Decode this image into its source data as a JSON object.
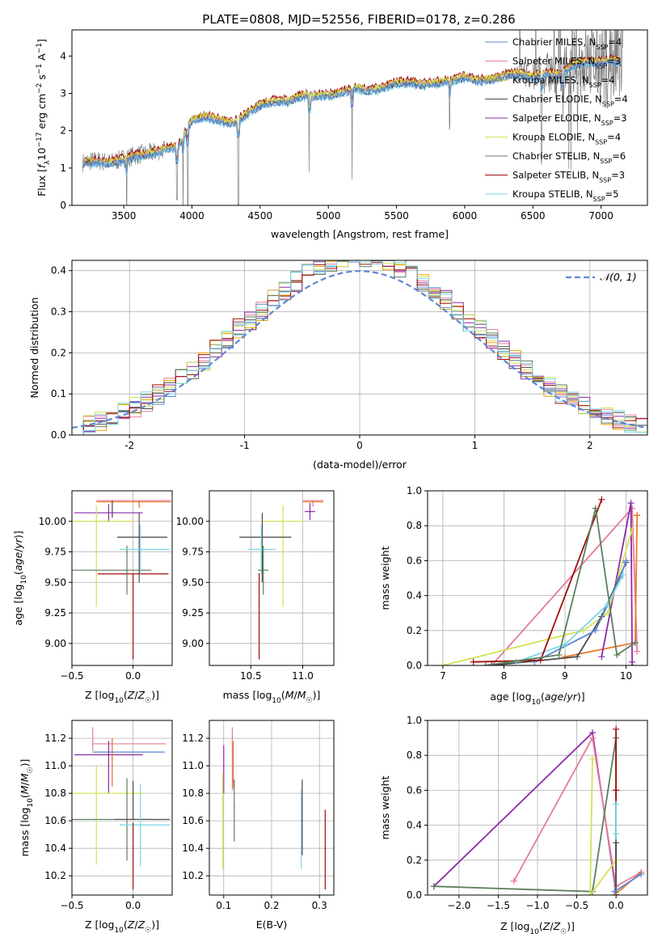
{
  "title": "PLATE=0808, MJD=52556, FIBERID=0178, z=0.286",
  "colors": {
    "chabrier_miles": "#5f86d6",
    "salpeter_miles": "#e57b9a",
    "kroupa_miles": "#e5a500",
    "chabrier_elodie": "#4a4a4a",
    "salpeter_elodie": "#8e2aa8",
    "kroupa_elodie": "#d4e157",
    "chabrier_stelib": "#5c7f5c",
    "salpeter_stelib": "#a10e0e",
    "kroupa_stelib": "#7ad7e6",
    "data": "#808080",
    "orange": "#e87b2b",
    "gaussian": "#5f86d6"
  },
  "chart_data": [
    {
      "id": "spectrum",
      "type": "line",
      "xlabel": "wavelength [Angstrom, rest frame]",
      "ylabel": "Flux [f_λ10^-17 erg cm^-2 s^-1 A^-1]",
      "xlim": [
        3120,
        7340
      ],
      "ylim": [
        0,
        4.7
      ],
      "xticks": [
        3500,
        4000,
        4500,
        5000,
        5500,
        6000,
        6500,
        7000
      ],
      "yticks": [
        0,
        1,
        2,
        3,
        4
      ],
      "grid": false,
      "legend_position": "top-right",
      "legend": [
        {
          "label": "Chabrier MILES, N",
          "sub": "SSP",
          "tail": "=4",
          "color_key": "chabrier_miles"
        },
        {
          "label": "Salpeter MILES, N",
          "sub": "SSP",
          "tail": "=3",
          "color_key": "salpeter_miles"
        },
        {
          "label": "Kroupa MILES, N",
          "sub": "SSP",
          "tail": "=4",
          "color_key": "kroupa_miles"
        },
        {
          "label": "Chabrier ELODIE, N",
          "sub": "SSP",
          "tail": "=4",
          "color_key": "chabrier_elodie"
        },
        {
          "label": "Salpeter ELODIE, N",
          "sub": "SSP",
          "tail": "=3",
          "color_key": "salpeter_elodie"
        },
        {
          "label": "Kroupa ELODIE, N",
          "sub": "SSP",
          "tail": "=4",
          "color_key": "kroupa_elodie"
        },
        {
          "label": "Chabrier STELIB, N",
          "sub": "SSP",
          "tail": "=6",
          "color_key": "chabrier_stelib"
        },
        {
          "label": "Salpeter STELIB, N",
          "sub": "SSP",
          "tail": "=3",
          "color_key": "salpeter_stelib"
        },
        {
          "label": "Kroupa STELIB, N",
          "sub": "SSP",
          "tail": "=5",
          "color_key": "kroupa_stelib"
        }
      ],
      "model_continuum": {
        "x": [
          3200,
          3300,
          3400,
          3500,
          3600,
          3700,
          3800,
          3900,
          4000,
          4100,
          4200,
          4300,
          4400,
          4500,
          4600,
          4700,
          4800,
          4900,
          5000,
          5100,
          5200,
          5300,
          5400,
          5500,
          5600,
          5700,
          5800,
          5900,
          6000,
          6100,
          6200,
          6300,
          6400,
          6500,
          6600,
          6700,
          6800,
          6900,
          7000,
          7100,
          7150
        ],
        "y": [
          1.15,
          1.2,
          1.15,
          1.25,
          1.35,
          1.4,
          1.5,
          1.6,
          2.3,
          2.4,
          2.3,
          2.2,
          2.45,
          2.7,
          2.8,
          2.8,
          2.95,
          2.95,
          2.95,
          3.05,
          3.15,
          3.1,
          3.15,
          3.3,
          3.3,
          3.25,
          3.3,
          3.35,
          3.45,
          3.35,
          3.4,
          3.5,
          3.55,
          3.45,
          3.55,
          3.5,
          3.8,
          3.85,
          3.85,
          3.9,
          3.85
        ]
      },
      "absorption_lines": [
        3520,
        3890,
        3934,
        3969,
        4340,
        4861,
        5175,
        5890,
        6563,
        6720
      ]
    },
    {
      "id": "residuals",
      "type": "histogram",
      "xlabel": "(data-model)/error",
      "ylabel": "Normed distribution",
      "xlim": [
        -2.5,
        2.5
      ],
      "ylim": [
        0,
        0.425
      ],
      "xticks": [
        -2,
        -1,
        0,
        1,
        2
      ],
      "yticks": [
        0.0,
        0.1,
        0.2,
        0.3,
        0.4
      ],
      "grid": true,
      "legend_position": "top-right",
      "gaussian_label": "𝒩(0, 1)",
      "bin_count": 50
    },
    {
      "id": "age_vs_Z",
      "type": "errorbar",
      "xlabel": "Z [log10(Z/Z☉)]",
      "ylabel": "age  [log10(age/yr)]",
      "xlim": [
        -0.5,
        0.32
      ],
      "ylim": [
        8.82,
        10.25
      ],
      "xticks": [
        -0.5,
        0.0
      ],
      "xticklabels": [
        "−0.5",
        "0.0"
      ],
      "yticks": [
        9.0,
        9.25,
        9.5,
        9.75,
        10.0
      ],
      "yticklabels": [
        "9.00",
        "9.25",
        "9.50",
        "9.75",
        "10.00"
      ],
      "grid": true,
      "points": [
        {
          "c": "salpeter_miles",
          "x": 0.05,
          "xerr": [
            0.35,
            0.26
          ],
          "y": 10.17,
          "yerr": [
            0.05,
            0.0
          ]
        },
        {
          "c": "orange",
          "x": 0.05,
          "xerr": [
            0.35,
            0.26
          ],
          "y": 10.16,
          "yerr": [
            0.05,
            0.0
          ]
        },
        {
          "c": "salpeter_elodie",
          "x": -0.2,
          "xerr": [
            0.28,
            0.28
          ],
          "y": 10.07,
          "yerr": [
            0.07,
            0.07
          ]
        },
        {
          "c": "chabrier_elodie",
          "x": -0.17,
          "xerr": [
            0.0,
            0.0
          ],
          "y": 10.1,
          "yerr": [
            0.07,
            0.07
          ]
        },
        {
          "c": "kroupa_elodie",
          "x": -0.3,
          "xerr": [
            0.2,
            0.3
          ],
          "y": 10.0,
          "yerr": [
            0.7,
            0.13
          ]
        },
        {
          "c": "salpeter_stelib",
          "x": 0.0,
          "xerr": [
            0.29,
            0.29
          ],
          "y": 9.57,
          "yerr": [
            0.7,
            0.0
          ]
        },
        {
          "c": "chabrier_stelib",
          "x": -0.05,
          "xerr": [
            0.45,
            0.2
          ],
          "y": 9.6,
          "yerr": [
            0.2,
            0.2
          ]
        },
        {
          "c": "chabrier_elodie",
          "x": 0.05,
          "xerr": [
            0.18,
            0.23
          ],
          "y": 9.87,
          "yerr": [
            0.37,
            0.2
          ]
        },
        {
          "c": "kroupa_stelib",
          "x": 0.06,
          "xerr": [
            0.17,
            0.24
          ],
          "y": 9.77,
          "yerr": [
            0.2,
            0.2
          ]
        }
      ]
    },
    {
      "id": "age_vs_mass",
      "type": "errorbar",
      "xlabel": "mass [log10(M/M☉)]",
      "ylabel": "",
      "xlim": [
        10.1,
        11.3
      ],
      "ylim": [
        8.82,
        10.25
      ],
      "xticks": [
        10.5,
        11.0
      ],
      "xticklabels": [
        "10.5",
        "11.0"
      ],
      "yticks": [
        9.0,
        9.25,
        9.5,
        9.75,
        10.0
      ],
      "yticklabels": [
        "9.00",
        "9.25",
        "9.50",
        "9.75",
        "10.00"
      ],
      "grid": true,
      "points": [
        {
          "c": "salpeter_miles",
          "x": 11.1,
          "xerr": [
            0.1,
            0.1
          ],
          "y": 10.17,
          "yerr": [
            0.05,
            0.0
          ]
        },
        {
          "c": "orange",
          "x": 11.1,
          "xerr": [
            0.1,
            0.1
          ],
          "y": 10.16,
          "yerr": [
            0.0,
            0.0
          ]
        },
        {
          "c": "salpeter_elodie",
          "x": 11.07,
          "xerr": [
            0.05,
            0.05
          ],
          "y": 10.08,
          "yerr": [
            0.07,
            0.07
          ]
        },
        {
          "c": "kroupa_elodie",
          "x": 10.81,
          "xerr": [
            0.2,
            0.2
          ],
          "y": 10.0,
          "yerr": [
            0.7,
            0.13
          ]
        },
        {
          "c": "chabrier_elodie",
          "x": 10.61,
          "xerr": [
            0.22,
            0.28
          ],
          "y": 9.87,
          "yerr": [
            0.37,
            0.2
          ]
        },
        {
          "c": "kroupa_stelib",
          "x": 10.6,
          "xerr": [
            0.13,
            0.14
          ],
          "y": 9.77,
          "yerr": [
            0.2,
            0.2
          ]
        },
        {
          "c": "chabrier_stelib",
          "x": 10.62,
          "xerr": [
            0.05,
            0.05
          ],
          "y": 9.6,
          "yerr": [
            0.2,
            0.2
          ]
        },
        {
          "c": "salpeter_stelib",
          "x": 10.58,
          "xerr": [
            0.0,
            0.0
          ],
          "y": 9.57,
          "yerr": [
            0.7,
            0.0
          ]
        }
      ]
    },
    {
      "id": "weight_vs_age",
      "type": "line",
      "xlabel": "age  [log10(age/yr)]",
      "ylabel": "mass weight",
      "xlim": [
        6.75,
        10.35
      ],
      "ylim": [
        0,
        1.0
      ],
      "xticks": [
        7,
        8,
        9,
        10
      ],
      "xticklabels": [
        "7",
        "8",
        "9",
        "10"
      ],
      "yticks": [
        0.0,
        0.2,
        0.4,
        0.6,
        0.8,
        1.0
      ],
      "yticklabels": [
        "0.0",
        "0.2",
        "0.4",
        "0.6",
        "0.8",
        "1.0"
      ],
      "grid": true,
      "series": [
        {
          "c": "salpeter_miles",
          "x": [
            7.8,
            10.1,
            10.18
          ],
          "y": [
            0.0,
            0.9,
            0.08
          ]
        },
        {
          "c": "orange",
          "x": [
            9.0,
            10.15,
            10.18,
            10.18
          ],
          "y": [
            0.05,
            0.13,
            0.86,
            0.86
          ]
        },
        {
          "c": "salpeter_elodie",
          "x": [
            9.6,
            10.08,
            10.1,
            10.1
          ],
          "y": [
            0.05,
            0.93,
            0.02,
            0.0
          ]
        },
        {
          "c": "kroupa_elodie",
          "x": [
            7.0,
            9.3,
            9.7,
            10.1
          ],
          "y": [
            0.0,
            0.2,
            0.3,
            0.78
          ]
        },
        {
          "c": "chabrier_elodie",
          "x": [
            7.8,
            9.2,
            9.6,
            10.0
          ],
          "y": [
            0.0,
            0.05,
            0.28,
            0.59
          ]
        },
        {
          "c": "chabrier_miles",
          "x": [
            8.5,
            9.5,
            9.9,
            10.0
          ],
          "y": [
            0.02,
            0.2,
            0.5,
            0.6
          ]
        },
        {
          "c": "kroupa_stelib",
          "x": [
            8.2,
            9.0,
            9.7,
            9.95
          ],
          "y": [
            0.02,
            0.12,
            0.35,
            0.52
          ]
        },
        {
          "c": "salpeter_stelib",
          "x": [
            7.5,
            8.6,
            9.6
          ],
          "y": [
            0.02,
            0.03,
            0.95
          ]
        },
        {
          "c": "chabrier_stelib",
          "x": [
            7.7,
            8.9,
            9.5,
            9.85,
            10.15
          ],
          "y": [
            0.0,
            0.06,
            0.9,
            0.06,
            0.13
          ]
        }
      ]
    },
    {
      "id": "mass_vs_Z",
      "type": "errorbar",
      "xlabel": "Z [log10(Z/Z☉)]",
      "ylabel": "mass [log10(M/M☉)]",
      "xlim": [
        -0.5,
        0.32
      ],
      "ylim": [
        10.06,
        11.33
      ],
      "xticks": [
        -0.5,
        0.0
      ],
      "xticklabels": [
        "−0.5",
        "0.0"
      ],
      "yticks": [
        10.2,
        10.4,
        10.6,
        10.8,
        11.0,
        11.2
      ],
      "yticklabels": [
        "10.2",
        "10.4",
        "10.6",
        "10.8",
        "11.0",
        "11.2"
      ],
      "grid": true,
      "points": [
        {
          "c": "salpeter_miles",
          "x": -0.33,
          "xerr": [
            0.0,
            0.6
          ],
          "y": 11.16,
          "yerr": [
            0.05,
            0.12
          ]
        },
        {
          "c": "chabrier_miles",
          "x": -0.17,
          "xerr": [
            0.16,
            0.43
          ],
          "y": 11.1,
          "yerr": [
            0.25,
            0.1
          ]
        },
        {
          "c": "salpeter_elodie",
          "x": -0.2,
          "xerr": [
            0.28,
            0.28
          ],
          "y": 11.08,
          "yerr": [
            0.28,
            0.1
          ]
        },
        {
          "c": "orange",
          "x": -0.17,
          "xerr": [
            0.0,
            0.0
          ],
          "y": 11.05,
          "yerr": [
            0.2,
            0.15
          ]
        },
        {
          "c": "kroupa_elodie",
          "x": -0.3,
          "xerr": [
            0.2,
            0.4
          ],
          "y": 10.8,
          "yerr": [
            0.52,
            0.2
          ]
        },
        {
          "c": "chabrier_stelib",
          "x": -0.05,
          "xerr": [
            0.45,
            0.2
          ],
          "y": 10.61,
          "yerr": [
            0.3,
            0.3
          ]
        },
        {
          "c": "chabrier_elodie",
          "x": 0.0,
          "xerr": [
            0.15,
            0.3
          ],
          "y": 10.61,
          "yerr": [
            0.0,
            0.28
          ]
        },
        {
          "c": "kroupa_stelib",
          "x": 0.06,
          "xerr": [
            0.17,
            0.24
          ],
          "y": 10.57,
          "yerr": [
            0.3,
            0.3
          ]
        },
        {
          "c": "salpeter_stelib",
          "x": 0.0,
          "xerr": [
            0.0,
            0.0
          ],
          "y": 10.58,
          "yerr": [
            0.48,
            0.0
          ]
        }
      ]
    },
    {
      "id": "mass_vs_ebv",
      "type": "errorbar",
      "xlabel": "E(B-V)",
      "ylabel": "",
      "xlim": [
        0.07,
        0.33
      ],
      "ylim": [
        10.06,
        11.33
      ],
      "xticks": [
        0.1,
        0.2,
        0.3
      ],
      "xticklabels": [
        "0.1",
        "0.2",
        "0.3"
      ],
      "yticks": [
        10.2,
        10.4,
        10.6,
        10.8,
        11.0,
        11.2
      ],
      "yticklabels": [
        "10.2",
        "10.4",
        "10.6",
        "10.8",
        "11.0",
        "11.2"
      ],
      "grid": true,
      "points": [
        {
          "c": "salpeter_elodie",
          "x": 0.1,
          "y": 11.0,
          "yerr": [
            0.2,
            0.15
          ]
        },
        {
          "c": "kroupa_elodie",
          "x": 0.098,
          "y": 10.65,
          "yerr": [
            0.4,
            0.3
          ]
        },
        {
          "c": "salpeter_miles",
          "x": 0.118,
          "y": 11.1,
          "yerr": [
            0.28,
            0.18
          ]
        },
        {
          "c": "orange",
          "x": 0.12,
          "y": 11.08,
          "yerr": [
            0.24,
            0.1
          ]
        },
        {
          "c": "chabrier_stelib",
          "x": 0.122,
          "y": 10.7,
          "yerr": [
            0.25,
            0.2
          ]
        },
        {
          "c": "kroupa_stelib",
          "x": 0.262,
          "y": 10.55,
          "yerr": [
            0.3,
            0.28
          ]
        },
        {
          "c": "chabrier_elodie",
          "x": 0.264,
          "y": 10.6,
          "yerr": [
            0.25,
            0.3
          ]
        },
        {
          "c": "salpeter_stelib",
          "x": 0.312,
          "y": 10.4,
          "yerr": [
            0.3,
            0.28
          ]
        }
      ]
    },
    {
      "id": "weight_vs_Z",
      "type": "line",
      "xlabel": "Z [log10(Z/Z☉)]",
      "ylabel": "mass weight",
      "xlim": [
        -2.4,
        0.4
      ],
      "ylim": [
        0,
        1.0
      ],
      "xticks": [
        -2.0,
        -1.5,
        -1.0,
        -0.5,
        0.0
      ],
      "xticklabels": [
        "−2.0",
        "−1.5",
        "−1.0",
        "−0.5",
        "0.0"
      ],
      "yticks": [
        0.0,
        0.2,
        0.4,
        0.6,
        0.8,
        1.0
      ],
      "yticklabels": [
        "0.0",
        "0.2",
        "0.4",
        "0.6",
        "0.8",
        "1.0"
      ],
      "grid": true,
      "series": [
        {
          "c": "salpeter_elodie",
          "x": [
            -2.32,
            -0.3,
            0.0
          ],
          "y": [
            0.05,
            0.93,
            0.02
          ]
        },
        {
          "c": "salpeter_miles",
          "x": [
            -1.3,
            -0.3,
            0.0,
            0.32
          ],
          "y": [
            0.08,
            0.9,
            0.05,
            0.13
          ]
        },
        {
          "c": "chabrier_stelib",
          "x": [
            -2.32,
            -0.3,
            0.0,
            0.0
          ],
          "y": [
            0.05,
            0.02,
            0.9,
            0.0
          ]
        },
        {
          "c": "kroupa_elodie",
          "x": [
            -0.3,
            -0.33,
            0.0
          ],
          "y": [
            0.78,
            0.0,
            0.2
          ]
        },
        {
          "c": "salpeter_stelib",
          "x": [
            0.0,
            0.0,
            0.0
          ],
          "y": [
            0.95,
            0.6,
            0.0
          ]
        },
        {
          "c": "kroupa_stelib",
          "x": [
            0.0,
            0.0,
            0.0
          ],
          "y": [
            0.52,
            0.35,
            0.0
          ]
        },
        {
          "c": "chabrier_elodie",
          "x": [
            0.0,
            0.0
          ],
          "y": [
            0.3,
            0.0
          ]
        },
        {
          "c": "orange",
          "x": [
            -0.02,
            0.32
          ],
          "y": [
            0.0,
            0.13
          ]
        },
        {
          "c": "chabrier_miles",
          "x": [
            -0.02,
            0.32
          ],
          "y": [
            0.02,
            0.12
          ]
        }
      ]
    }
  ]
}
